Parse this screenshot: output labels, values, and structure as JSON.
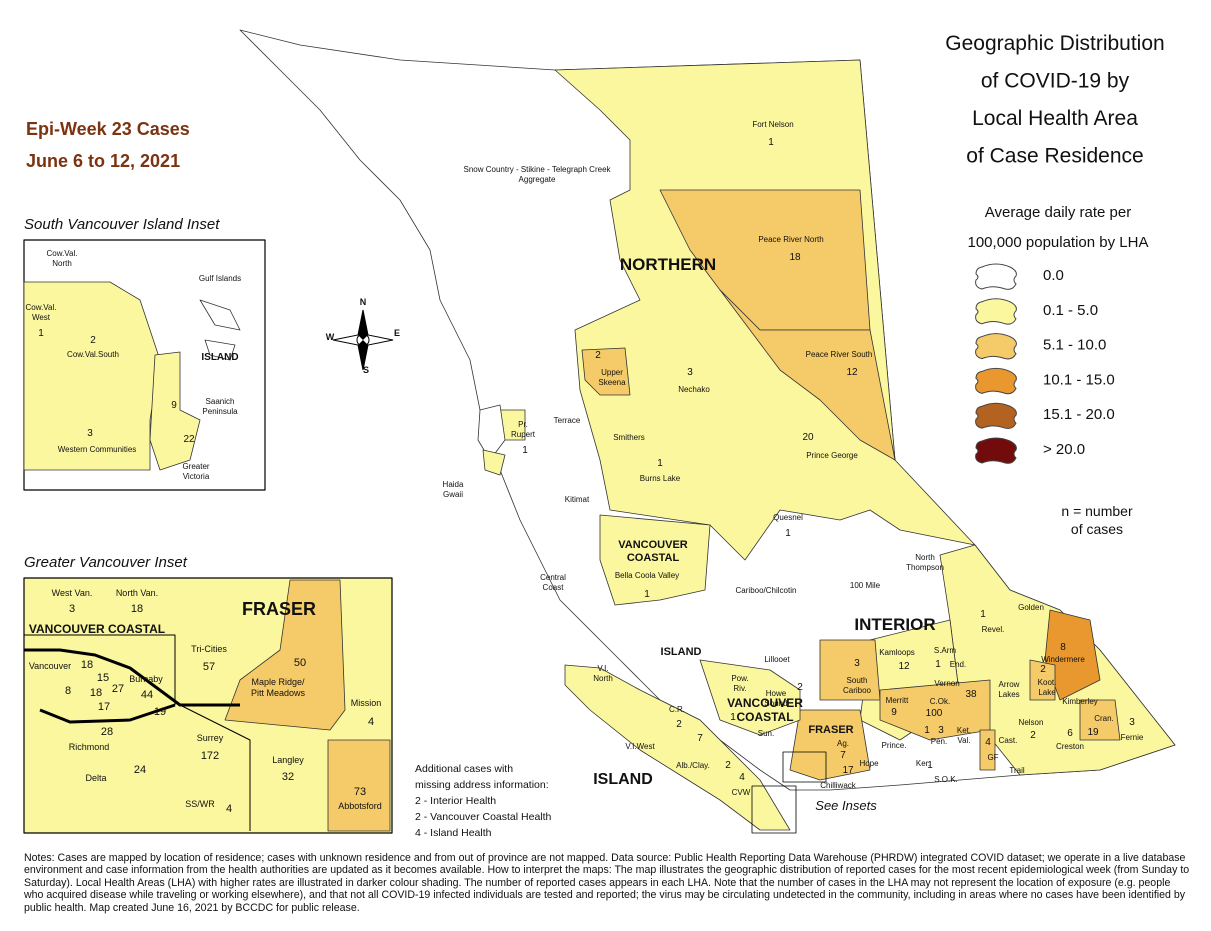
{
  "title": [
    "Geographic Distribution",
    "of COVID-19 by",
    "Local Health Area",
    "of Case Residence"
  ],
  "subtitle": [
    "Epi-Week 23 Cases",
    "June 6 to 12, 2021"
  ],
  "legend": {
    "heading": [
      "Average daily rate per",
      "100,000 population by LHA"
    ],
    "classes": [
      {
        "label": "0.0",
        "color": "#ffffff"
      },
      {
        "label": "0.1 - 5.0",
        "color": "#fbf79e"
      },
      {
        "label": "5.1 - 10.0",
        "color": "#f5ca68"
      },
      {
        "label": "10.1 - 15.0",
        "color": "#e9982f"
      },
      {
        "label": "15.1 - 20.0",
        "color": "#b4621f"
      },
      {
        "label": "> 20.0",
        "color": "#720c0c"
      }
    ],
    "note": [
      "n = number",
      "of cases"
    ]
  },
  "compass": [
    "N",
    "E",
    "S",
    "W"
  ],
  "regions": [
    "NORTHERN",
    "INTERIOR",
    [
      "VANCOUVER",
      "COASTAL"
    ],
    "ISLAND",
    [
      "VANCOUVER",
      "COASTAL"
    ],
    "FRASER",
    "ISLAND"
  ],
  "areas": [
    {
      "name": "Fort Nelson",
      "cases": 1
    },
    {
      "name": [
        "Snow Country - Stikine - Telegraph Creek",
        "Aggregate"
      ]
    },
    {
      "name": "Peace River North",
      "cases": 18
    },
    {
      "name": "Peace River South",
      "cases": 12
    },
    {
      "name": [
        "Upper",
        "Skeena"
      ],
      "cases": 2
    },
    {
      "name": "Nechako",
      "cases": 3
    },
    {
      "name": [
        "Pr.",
        "Rupert"
      ],
      "cases": 1
    },
    {
      "name": "Terrace"
    },
    {
      "name": "Smithers"
    },
    {
      "name": "Burns Lake",
      "cases": 1
    },
    {
      "name": "Prince George",
      "cases": 20
    },
    {
      "name": [
        "Haida",
        "Gwaii"
      ]
    },
    {
      "name": "Kitimat"
    },
    {
      "name": "Quesnel",
      "cases": 1
    },
    {
      "name": "Bella Coola Valley",
      "cases": 1
    },
    {
      "name": [
        "Central",
        "Coast"
      ]
    },
    {
      "name": "Cariboo/Chilcotin"
    },
    {
      "name": [
        "North",
        "Thompson"
      ]
    },
    {
      "name": "100 Mile"
    },
    {
      "name": "Golden"
    },
    {
      "name": "Revel.",
      "cases": 1
    },
    {
      "name": "Lillooet"
    },
    {
      "name": "Kamloops",
      "cases": 12
    },
    {
      "name": "S.Arm"
    },
    {
      "name": "End.",
      "cases": 1
    },
    {
      "name": [
        "South",
        "Cariboo"
      ],
      "cases": 3
    },
    {
      "name": "Windermere",
      "cases": 8
    },
    {
      "name": [
        "Koot.",
        "Lake"
      ],
      "cases": 2
    },
    {
      "name": "Kimberley"
    },
    {
      "name": [
        "Arrow",
        "Lakes"
      ]
    },
    {
      "name": "Merritt",
      "cases": 9
    },
    {
      "name": "Vernon",
      "cases": 38
    },
    {
      "name": "C.Ok.",
      "cases": 100
    },
    {
      "name": "Cran.",
      "cases": 19
    },
    {
      "name": "Fernie",
      "cases": 3
    },
    {
      "name": "Creston",
      "cases": 6
    },
    {
      "name": "Nelson",
      "cases": 2
    },
    {
      "name": "Cast."
    },
    {
      "name": "GF",
      "cases": 4
    },
    {
      "name": [
        "Ket.",
        "Val."
      ]
    },
    {
      "name": "Pen.",
      "cases": 3
    },
    {
      "name": "Prince."
    },
    {
      "name": "Ker."
    },
    {
      "name": "S.O.K."
    },
    {
      "name": "Trail"
    },
    {
      "name": "Hope"
    },
    {
      "name": "Chilliwack",
      "cases": 17
    },
    {
      "name": "Ag.",
      "cases": 7
    },
    {
      "name": [
        "Pow.",
        "Riv."
      ],
      "cases": 1
    },
    {
      "name": [
        "Howe",
        "Sound"
      ],
      "cases": 2
    },
    {
      "name": [
        "V.I.",
        "North"
      ]
    },
    {
      "name": "V.I.West"
    },
    {
      "name": "C.R.",
      "cases": 2
    },
    {
      "name": "Alb./Clay.",
      "cases": 2
    },
    {
      "name": "CVW",
      "cases": 4
    },
    {
      "name": "Sun."
    },
    {
      "cases": 1
    },
    {
      "cases": 1
    },
    {
      "cases": 7
    }
  ],
  "insets": {
    "south_island": {
      "title": "South Vancouver Island Inset",
      "regions": [
        "ISLAND"
      ],
      "areas": [
        {
          "name": [
            "Cow.Val.",
            "North"
          ]
        },
        {
          "name": "Gulf Islands"
        },
        {
          "name": [
            "Cow.Val.",
            "West"
          ],
          "cases": 1
        },
        {
          "name": "Cow.Val.South",
          "cases": 2
        },
        {
          "name": [
            "Saanich",
            "Peninsula"
          ],
          "cases": 9
        },
        {
          "name": "Western Communities",
          "cases": 3
        },
        {
          "name": [
            "Greater",
            "Victoria"
          ],
          "cases": 22
        }
      ]
    },
    "greater_vancouver": {
      "title": "Greater Vancouver Inset",
      "regions": [
        "VANCOUVER COASTAL",
        "FRASER"
      ],
      "areas": [
        {
          "name": "West Van.",
          "cases": 3
        },
        {
          "name": "North Van.",
          "cases": 18
        },
        {
          "name": "Tri-Cities",
          "cases": 57
        },
        {
          "name": [
            "Maple Ridge/",
            "Pitt Meadows"
          ],
          "cases": 50
        },
        {
          "name": "Mission",
          "cases": 4
        },
        {
          "name": "Vancouver"
        },
        {
          "cases": 18
        },
        {
          "cases": 15
        },
        {
          "cases": 27
        },
        {
          "cases": 18
        },
        {
          "cases": 8
        },
        {
          "cases": 17
        },
        {
          "name": "Burnaby",
          "cases": 44
        },
        {
          "cases": 19
        },
        {
          "name": "Richmond",
          "cases": 28
        },
        {
          "name": "Surrey",
          "cases": 172
        },
        {
          "name": "Langley",
          "cases": 32
        },
        {
          "name": "Delta",
          "cases": 24
        },
        {
          "name": "SS/WR",
          "cases": 4
        },
        {
          "name": "Abbotsford",
          "cases": 73
        }
      ]
    }
  },
  "missing": {
    "heading": [
      "Additional cases with",
      "missing address information:"
    ],
    "items": [
      "2 - Interior Health",
      "2 - Vancouver Coastal Health",
      "4 - Island Health"
    ]
  },
  "see_insets": "See Insets",
  "notes": "Notes: Cases are mapped by location of residence; cases with unknown residence and from out of province are not mapped. Data source: Public Health Reporting Data Warehouse (PHRDW) integrated COVID dataset; we operate in a live database environment and case information from the health authorities are updated as it becomes available. How to interpret the maps: The map illustrates the geographic distribution of reported cases for the most recent epidemiological week (from Sunday to Saturday). Local Health Areas (LHA) with higher rates are illustrated in darker colour shading. The number of reported cases appears in each LHA. Note that the number of cases in the LHA may not represent the location of exposure (e.g. people who acquired disease while traveling or working elsewhere), and that not all COVID-19 infected individuals are tested and reported; the virus may be circulating undetected in the community, including in areas where no cases have been identified by public health. Map created June 16, 2021 by BCCDC for public release."
}
